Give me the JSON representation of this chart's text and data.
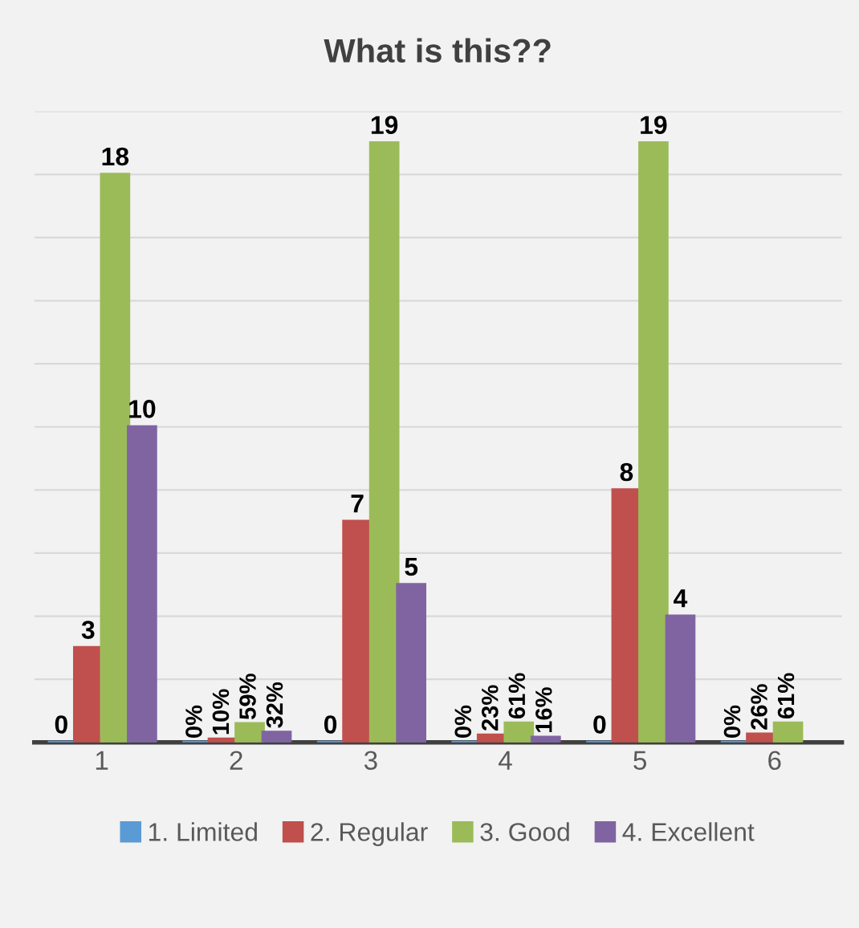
{
  "chart_data": {
    "type": "bar",
    "title": "What is this??",
    "categories": [
      "1",
      "2",
      "3",
      "4",
      "5",
      "6"
    ],
    "series": [
      {
        "name": "1. Limited",
        "color": "#5b9bd5",
        "values": [
          0,
          0,
          0,
          0,
          0,
          0
        ],
        "value_labels": [
          "0",
          "0%",
          "0",
          "0%",
          "0",
          "0%"
        ]
      },
      {
        "name": "2. Regular",
        "color": "#c0504d",
        "values": [
          3,
          0.1,
          7,
          0.23,
          8,
          0.26
        ],
        "value_labels": [
          "3",
          "10%",
          "7",
          "23%",
          "8",
          "26%"
        ]
      },
      {
        "name": "3. Good",
        "color": "#9bbb59",
        "values": [
          18,
          0.59,
          19,
          0.61,
          19,
          0.61
        ],
        "value_labels": [
          "18",
          "59%",
          "19",
          "61%",
          "19",
          "61%"
        ]
      },
      {
        "name": "4. Excellent",
        "color": "#8064a2",
        "values": [
          10,
          0.32,
          5,
          0.16,
          4,
          null
        ],
        "value_labels": [
          "10",
          "32%",
          "5",
          "16%",
          "4",
          null
        ]
      }
    ],
    "ylim": [
      0,
      20
    ],
    "yticks": [
      {
        "value": 0,
        "label": null
      },
      {
        "value": 2,
        "label": null
      },
      {
        "value": 4,
        "label": null
      },
      {
        "value": 6,
        "label": null
      },
      {
        "value": 8,
        "label": null
      },
      {
        "value": 10,
        "label": null
      },
      {
        "value": 12,
        "label": null
      },
      {
        "value": 14,
        "label": null
      },
      {
        "value": 16,
        "label": null
      },
      {
        "value": 18,
        "label": null
      },
      {
        "value": 20,
        "label": null
      }
    ],
    "tick_labels": "x",
    "grid": "y",
    "legend": "bottom"
  }
}
